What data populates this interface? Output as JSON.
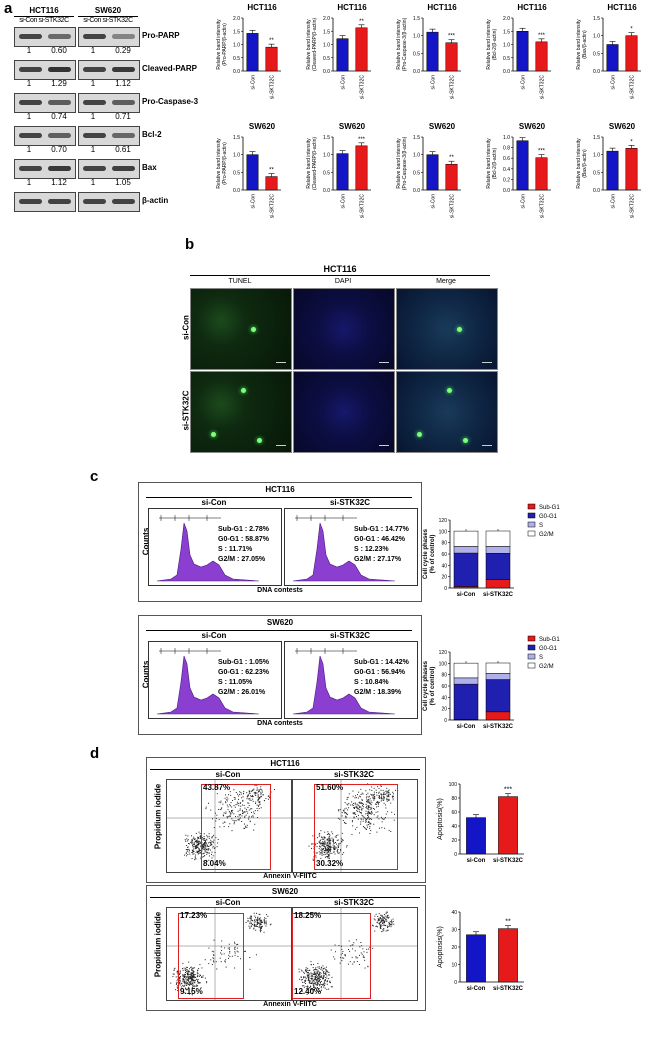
{
  "panel_labels": [
    "a",
    "b",
    "c",
    "d"
  ],
  "western": {
    "cells": [
      {
        "name": "HCT116",
        "lanes": [
          "si-Con",
          "si-STK32C"
        ]
      },
      {
        "name": "SW620",
        "lanes": [
          "si-Con",
          "si-STK32C"
        ]
      }
    ],
    "rows": [
      {
        "label": "Pro-PARP",
        "values": [
          [
            "1",
            "0.60"
          ],
          [
            "1",
            "0.29"
          ]
        ]
      },
      {
        "label": "Cleaved-PARP",
        "values": [
          [
            "1",
            "1.29"
          ],
          [
            "1",
            "1.12"
          ]
        ]
      },
      {
        "label": "Pro-Caspase-3",
        "values": [
          [
            "1",
            "0.74"
          ],
          [
            "1",
            "0.71"
          ]
        ]
      },
      {
        "label": "Bcl-2",
        "values": [
          [
            "1",
            "0.70"
          ],
          [
            "1",
            "0.61"
          ]
        ]
      },
      {
        "label": "Bax",
        "values": [
          [
            "1",
            "1.12"
          ],
          [
            "1",
            "1.05"
          ]
        ]
      },
      {
        "label": "β-actin",
        "values": [
          [
            "",
            ""
          ],
          [
            "",
            ""
          ]
        ]
      }
    ]
  },
  "chart_data": [
    {
      "type": "bar",
      "title": "HCT116",
      "ylabel": "Relative band intensity (Pro-PARP/β-actin)",
      "categories": [
        "si-Con",
        "si-SKT32C"
      ],
      "values": [
        1.42,
        0.9
      ],
      "ylim": [
        0,
        2.0
      ],
      "ticks": [
        "0.0",
        "0.5",
        "1.0",
        "1.5",
        "2.0"
      ],
      "sig": "**",
      "colors": [
        "#1515c8",
        "#e61a1a"
      ]
    },
    {
      "type": "bar",
      "title": "HCT116",
      "ylabel": "Relative band intensity (Cleaved-PARP/β-actin)",
      "categories": [
        "si-Con",
        "si-SKT32C"
      ],
      "values": [
        1.22,
        1.63
      ],
      "ylim": [
        0,
        2.0
      ],
      "ticks": [
        "0.0",
        "0.5",
        "1.0",
        "1.5",
        "2.0"
      ],
      "sig": "**",
      "colors": [
        "#1515c8",
        "#e61a1a"
      ]
    },
    {
      "type": "bar",
      "title": "HCT116",
      "ylabel": "Relative band intensity (Pro-Caspase-3/β-actin)",
      "categories": [
        "si-Con",
        "si-SKT32C"
      ],
      "values": [
        1.1,
        0.8
      ],
      "ylim": [
        0,
        1.5
      ],
      "ticks": [
        "0.0",
        "0.5",
        "1.0",
        "1.5"
      ],
      "sig": "***",
      "colors": [
        "#1515c8",
        "#e61a1a"
      ]
    },
    {
      "type": "bar",
      "title": "HCT116",
      "ylabel": "Relative band intensity (Bcl-2/β-actin)",
      "categories": [
        "si-Con",
        "si-SKT32C"
      ],
      "values": [
        1.5,
        1.1
      ],
      "ylim": [
        0,
        2.0
      ],
      "ticks": [
        "0.0",
        "0.5",
        "1.0",
        "1.5",
        "2.0"
      ],
      "sig": "***",
      "colors": [
        "#1515c8",
        "#e61a1a"
      ]
    },
    {
      "type": "bar",
      "title": "HCT116",
      "ylabel": "Relative band intensity (Bax/β-actin)",
      "categories": [
        "si-Con",
        "si-SKT32C"
      ],
      "values": [
        0.75,
        1.0
      ],
      "ylim": [
        0,
        1.5
      ],
      "ticks": [
        "0.0",
        "0.5",
        "1.0",
        "1.5"
      ],
      "sig": "*",
      "colors": [
        "#1515c8",
        "#e61a1a"
      ]
    },
    {
      "type": "bar",
      "title": "SW620",
      "ylabel": "Relative band intensity (Pro-PARP/β-actin)",
      "categories": [
        "si-Con",
        "si-SKT32C"
      ],
      "values": [
        1.0,
        0.38
      ],
      "ylim": [
        0,
        1.5
      ],
      "ticks": [
        "0.0",
        "0.5",
        "1.0",
        "1.5"
      ],
      "sig": "**",
      "colors": [
        "#1515c8",
        "#e61a1a"
      ]
    },
    {
      "type": "bar",
      "title": "SW620",
      "ylabel": "Relative band intensity (Cleaved-PARP/β-actin)",
      "categories": [
        "si-Con",
        "si-SKT32C"
      ],
      "values": [
        1.03,
        1.25
      ],
      "ylim": [
        0,
        1.5
      ],
      "ticks": [
        "0.0",
        "0.5",
        "1.0",
        "1.5"
      ],
      "sig": "***",
      "colors": [
        "#1515c8",
        "#e61a1a"
      ]
    },
    {
      "type": "bar",
      "title": "SW620",
      "ylabel": "Relative band intensity (Pro-Caspase-3/β-actin)",
      "categories": [
        "si-Con",
        "si-SKT32C"
      ],
      "values": [
        1.0,
        0.73
      ],
      "ylim": [
        0,
        1.5
      ],
      "ticks": [
        "0.0",
        "0.5",
        "1.0",
        "1.5"
      ],
      "sig": "**",
      "colors": [
        "#1515c8",
        "#e61a1a"
      ]
    },
    {
      "type": "bar",
      "title": "SW620",
      "ylabel": "Relative band intensity (Bcl-2/β-actin)",
      "categories": [
        "si-Con",
        "si-SKT32C"
      ],
      "values": [
        0.93,
        0.61
      ],
      "ylim": [
        0,
        1.0
      ],
      "ticks": [
        "0.0",
        "0.2",
        "0.4",
        "0.6",
        "0.8",
        "1.0"
      ],
      "sig": "***",
      "colors": [
        "#1515c8",
        "#e61a1a"
      ]
    },
    {
      "type": "bar",
      "title": "SW620",
      "ylabel": "Relative band intensity (Bax/β-actin)",
      "categories": [
        "si-Con",
        "si-SKT32C"
      ],
      "values": [
        1.1,
        1.18
      ],
      "ylim": [
        0,
        1.5
      ],
      "ticks": [
        "0.0",
        "0.5",
        "1.0",
        "1.5"
      ],
      "sig": "*",
      "colors": [
        "#1515c8",
        "#e61a1a"
      ]
    },
    {
      "type": "bar",
      "stacked": true,
      "ylabel": "Cell cycle phases (% of control)",
      "categories": [
        "si-Con",
        "si-STK32C"
      ],
      "ylim": [
        0,
        120
      ],
      "ticks": [
        "0",
        "20",
        "40",
        "60",
        "80",
        "100",
        "120"
      ],
      "series": [
        {
          "name": "Sub-G1",
          "values": [
            2.78,
            14.77
          ],
          "color": "#e61a1a"
        },
        {
          "name": "G0-G1",
          "values": [
            58.87,
            46.42
          ],
          "color": "#2020b0"
        },
        {
          "name": "S",
          "values": [
            11.71,
            12.23
          ],
          "color": "#b0b0ea"
        },
        {
          "name": "G2/M",
          "values": [
            27.05,
            27.17
          ],
          "color": "#ffffff"
        }
      ]
    },
    {
      "type": "bar",
      "stacked": true,
      "ylabel": "Cell cycle phases (% of control)",
      "categories": [
        "si-Con",
        "si-STK32C"
      ],
      "ylim": [
        0,
        120
      ],
      "ticks": [
        "0",
        "20",
        "40",
        "60",
        "80",
        "100",
        "120"
      ],
      "series": [
        {
          "name": "Sub-G1",
          "values": [
            1.05,
            14.42
          ],
          "color": "#e61a1a"
        },
        {
          "name": "G0-G1",
          "values": [
            62.23,
            56.94
          ],
          "color": "#2020b0"
        },
        {
          "name": "S",
          "values": [
            11.05,
            10.84
          ],
          "color": "#b0b0ea"
        },
        {
          "name": "G2/M",
          "values": [
            26.01,
            18.39
          ],
          "color": "#ffffff"
        }
      ]
    },
    {
      "type": "bar",
      "ylabel": "Apoptosis(%)",
      "categories": [
        "si-Con",
        "si-STK32C"
      ],
      "values": [
        52,
        82
      ],
      "ylim": [
        0,
        100
      ],
      "ticks": [
        "0",
        "20",
        "40",
        "60",
        "80",
        "100"
      ],
      "sig": "***",
      "colors": [
        "#1515c8",
        "#e61a1a"
      ]
    },
    {
      "type": "bar",
      "ylabel": "Apoptosis(%)",
      "categories": [
        "si-Con",
        "si-STK32C"
      ],
      "values": [
        27,
        30.5
      ],
      "ylim": [
        0,
        40
      ],
      "ticks": [
        "0",
        "10",
        "20",
        "30",
        "40"
      ],
      "sig": "**",
      "colors": [
        "#1515c8",
        "#e61a1a"
      ]
    }
  ],
  "tunel": {
    "title": "HCT116",
    "columns": [
      "TUNEL",
      "DAPI",
      "Merge"
    ],
    "rows": [
      "si-Con",
      "si-STK32C"
    ]
  },
  "cellcycle": {
    "xlabel": "DNA contests",
    "ylabel": "Counts",
    "blocks": [
      {
        "title": "HCT116",
        "panels": [
          {
            "name": "si-Con",
            "lines": [
              "Sub-G1 : 2.78%",
              "G0-G1 : 58.87%",
              "S : 11.71%",
              "G2/M : 27.05%"
            ]
          },
          {
            "name": "si-STK32C",
            "lines": [
              "Sub-G1 : 14.77%",
              "G0-G1 : 46.42%",
              "S : 12.23%",
              "G2/M : 27.17%"
            ]
          }
        ]
      },
      {
        "title": "SW620",
        "panels": [
          {
            "name": "si-Con",
            "lines": [
              "Sub-G1 : 1.05%",
              "G0-G1 : 62.23%",
              "S : 11.05%",
              "G2/M : 26.01%"
            ]
          },
          {
            "name": "si-STK32C",
            "lines": [
              "Sub-G1 : 14.42%",
              "G0-G1 : 56.94%",
              "S : 10.84%",
              "G2/M : 18.39%"
            ]
          }
        ]
      }
    ]
  },
  "apoptosis": {
    "xlabel": "Annexin V-FIITC",
    "ylabel": "Propidium iodide",
    "blocks": [
      {
        "title": "HCT116",
        "panels": [
          {
            "name": "si-Con",
            "upper": "43.87%",
            "lower": "8.04%"
          },
          {
            "name": "si-STK32C",
            "upper": "51.60%",
            "lower": "30.32%"
          }
        ]
      },
      {
        "title": "SW620",
        "panels": [
          {
            "name": "si-Con",
            "upper": "17.23%",
            "lower": "9.15%"
          },
          {
            "name": "si-STK32C",
            "upper": "18.25%",
            "lower": "12.40%"
          }
        ]
      }
    ]
  }
}
